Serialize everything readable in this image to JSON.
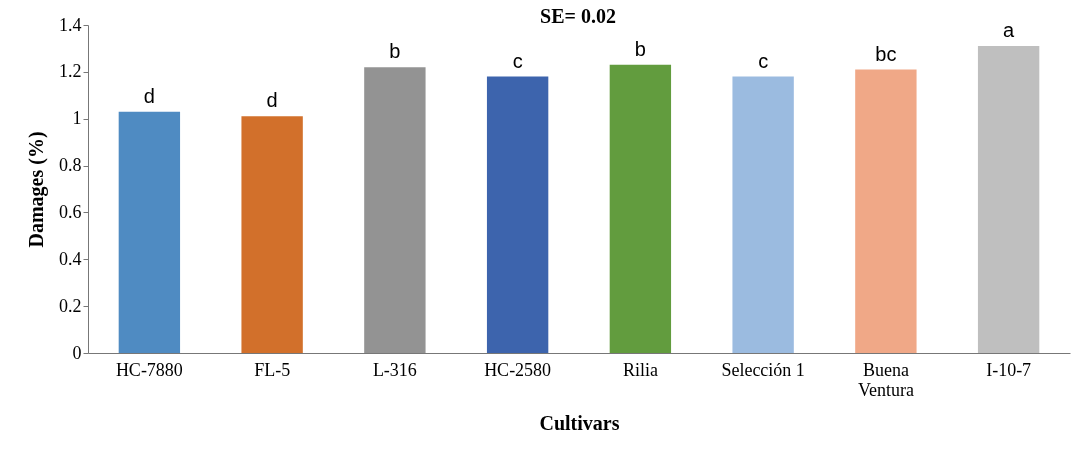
{
  "chart_data": {
    "type": "bar",
    "xlabel": "Cultivars",
    "ylabel": "Damages (%)",
    "categories": [
      "HC-7880",
      "FL-5",
      "L-316",
      "HC-2580",
      "Rilia",
      "Selección 1",
      "Buena Ventura",
      "I-10-7"
    ],
    "values": [
      1.03,
      1.01,
      1.22,
      1.18,
      1.23,
      1.18,
      1.21,
      1.31
    ],
    "colors": [
      "#4f8bc2",
      "#d2702b",
      "#939393",
      "#3d64ad",
      "#629c3e",
      "#9bbbe0",
      "#f0a887",
      "#bfbfbf"
    ],
    "ylim": [
      0,
      1.4
    ],
    "yticks": [
      0,
      0.2,
      0.4,
      0.6,
      0.8,
      1,
      1.2,
      1.4
    ],
    "grid": false,
    "annotations": [
      "SE= 0.02",
      {
        "text": "d",
        "x": "HC-7880",
        "y": 1.03
      },
      {
        "text": "d",
        "x": "FL-5",
        "y": 1.01
      },
      {
        "text": "b",
        "x": "L-316",
        "y": 1.22
      },
      {
        "text": "c",
        "x": "HC-2580",
        "y": 1.18
      },
      {
        "text": "b",
        "x": "Rilia",
        "y": 1.23
      },
      {
        "text": "c",
        "x": "Selección 1",
        "y": 1.18
      },
      {
        "text": "bc",
        "x": "Buena Ventura",
        "y": 1.21
      },
      {
        "text": "a",
        "x": "I-10-7",
        "y": 1.31
      }
    ]
  }
}
